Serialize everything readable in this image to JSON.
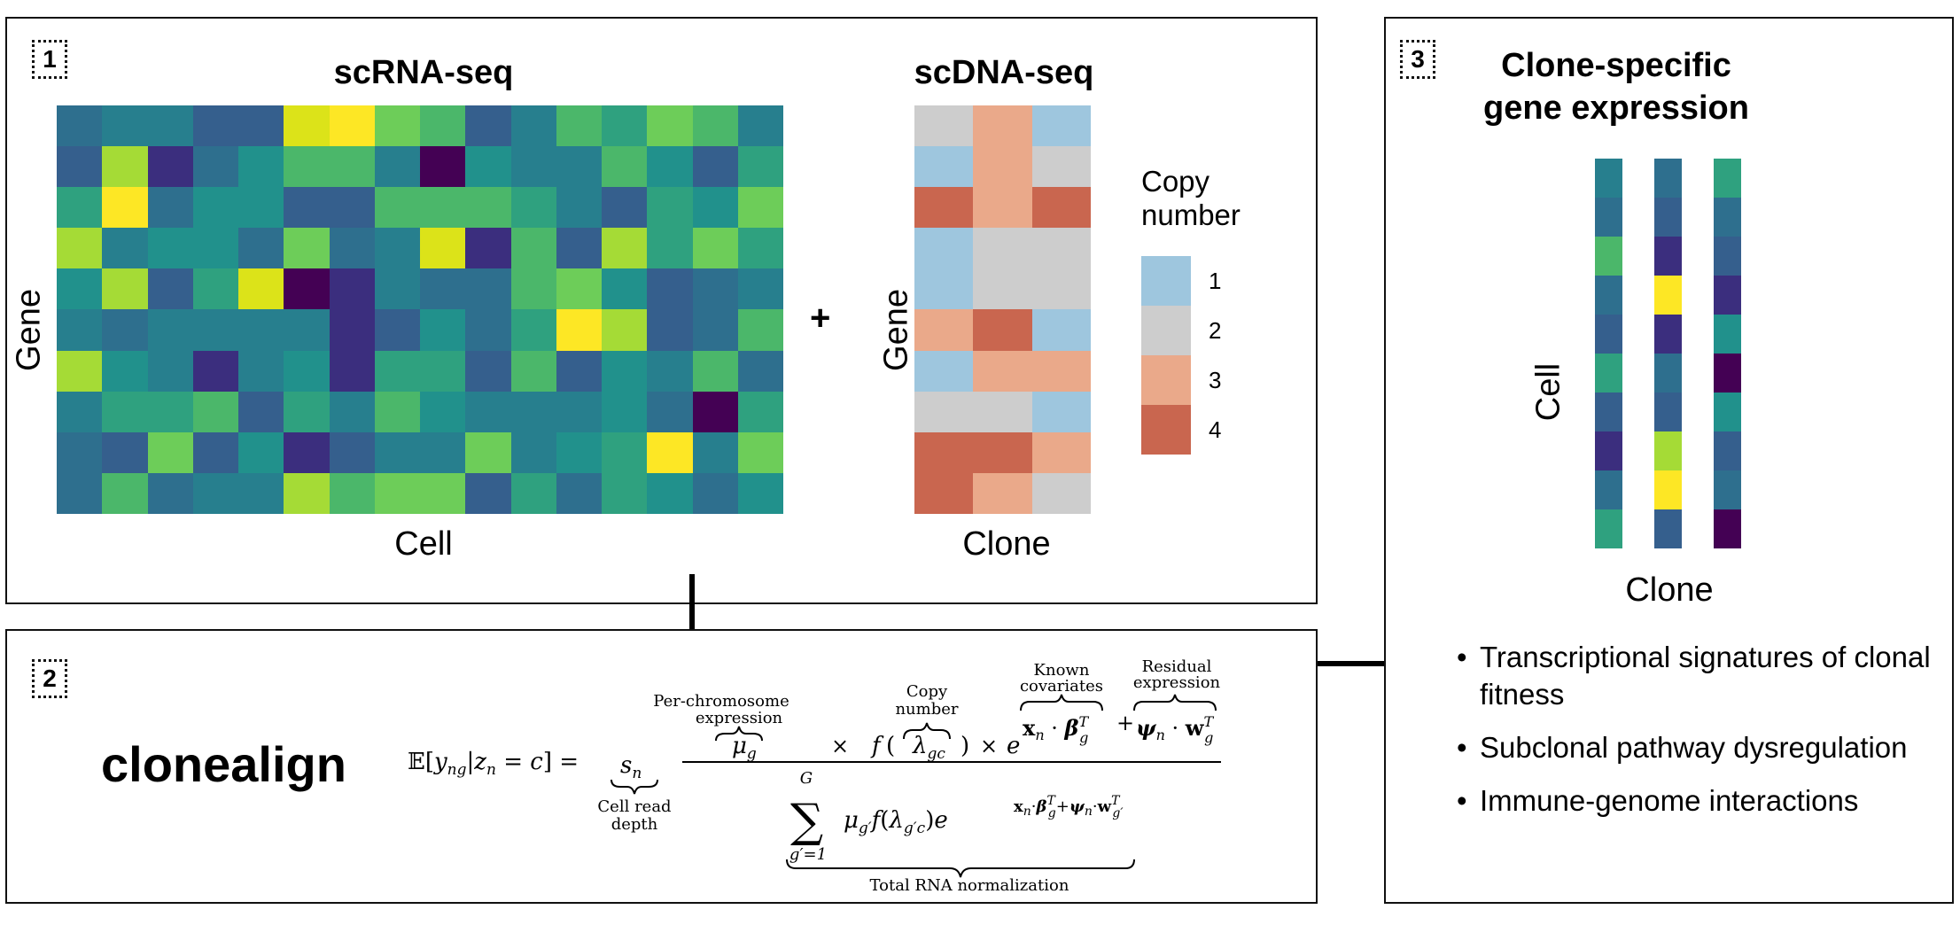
{
  "panel1": {
    "badge": "1",
    "scrna_title": "scRNA-seq",
    "scdna_title": "scDNA-seq",
    "rna_ylabel": "Gene",
    "rna_xlabel": "Cell",
    "plus": "+",
    "dna_ylabel": "Gene",
    "dna_xlabel": "Clone",
    "legend_title_line1": "Copy",
    "legend_title_line2": "number",
    "legend": [
      {
        "label": "1",
        "color": "#9ec6de"
      },
      {
        "label": "2",
        "color": "#cdcdcd"
      },
      {
        "label": "3",
        "color": "#eaa98a"
      },
      {
        "label": "4",
        "color": "#c9664f"
      }
    ]
  },
  "panel2": {
    "badge": "2",
    "name": "clonealign",
    "lhs": "𝔼[y",
    "annot_per_chrom_1": "Per-chromosome",
    "annot_per_chrom_2": "expression",
    "annot_copy_1": "Copy",
    "annot_copy_2": "number",
    "annot_known_1": "Known",
    "annot_known_2": "covariates",
    "annot_resid_1": "Residual",
    "annot_resid_2": "expression",
    "annot_depth_1": "Cell read",
    "annot_depth_2": "depth",
    "annot_total": "Total RNA normalization"
  },
  "panel3": {
    "badge": "3",
    "title_line1": "Clone-specific",
    "title_line2": "gene expression",
    "ylabel": "Cell",
    "xlabel": "Clone",
    "bullets": [
      "Transcriptional signatures of clonal fitness",
      "Subclonal pathway dysregulation",
      "Immune-genome interactions"
    ]
  },
  "colors": {
    "v1": "#440154",
    "v2": "#3b2e7e",
    "v3": "#355f8d",
    "v4": "#2e6f8e",
    "v5": "#277f8e",
    "v6": "#21918c",
    "v7": "#2fa17f",
    "v8": "#4bb76a",
    "v9": "#6dcd59",
    "v10": "#a5db36",
    "v11": "#dce319",
    "v12": "#fde725",
    "cn1": "#9ec6de",
    "cn2": "#cdcdcd",
    "cn3": "#eaa98a",
    "cn4": "#c9664f"
  },
  "rna_heatmap": {
    "rows": 10,
    "cols": 16,
    "cells": [
      [
        "v4",
        "v5",
        "v5",
        "v3",
        "v3",
        "v11",
        "v12",
        "v9",
        "v8",
        "v3",
        "v5",
        "v8",
        "v7",
        "v9",
        "v8",
        "v5"
      ],
      [
        "v3",
        "v10",
        "v2",
        "v4",
        "v6",
        "v8",
        "v8",
        "v5",
        "v1",
        "v6",
        "v5",
        "v5",
        "v8",
        "v6",
        "v3",
        "v7"
      ],
      [
        "v7",
        "v12",
        "v4",
        "v6",
        "v6",
        "v3",
        "v3",
        "v8",
        "v8",
        "v8",
        "v7",
        "v5",
        "v3",
        "v7",
        "v6",
        "v9"
      ],
      [
        "v10",
        "v5",
        "v6",
        "v6",
        "v4",
        "v9",
        "v4",
        "v5",
        "v11",
        "v2",
        "v8",
        "v3",
        "v10",
        "v7",
        "v9",
        "v7"
      ],
      [
        "v6",
        "v10",
        "v3",
        "v7",
        "v11",
        "v1",
        "v2",
        "v5",
        "v4",
        "v4",
        "v8",
        "v9",
        "v6",
        "v3",
        "v4",
        "v5"
      ],
      [
        "v5",
        "v4",
        "v5",
        "v5",
        "v5",
        "v5",
        "v2",
        "v3",
        "v6",
        "v4",
        "v7",
        "v12",
        "v10",
        "v3",
        "v4",
        "v8"
      ],
      [
        "v10",
        "v6",
        "v5",
        "v2",
        "v5",
        "v6",
        "v2",
        "v7",
        "v7",
        "v3",
        "v8",
        "v3",
        "v6",
        "v5",
        "v8",
        "v4"
      ],
      [
        "v5",
        "v7",
        "v7",
        "v8",
        "v3",
        "v7",
        "v5",
        "v8",
        "v6",
        "v5",
        "v5",
        "v5",
        "v6",
        "v4",
        "v1",
        "v7"
      ],
      [
        "v4",
        "v3",
        "v9",
        "v3",
        "v6",
        "v2",
        "v3",
        "v5",
        "v5",
        "v9",
        "v5",
        "v6",
        "v7",
        "v12",
        "v5",
        "v9"
      ],
      [
        "v4",
        "v8",
        "v4",
        "v5",
        "v5",
        "v10",
        "v8",
        "v9",
        "v9",
        "v3",
        "v7",
        "v4",
        "v7",
        "v6",
        "v4",
        "v6"
      ]
    ]
  },
  "dna_heatmap": {
    "rows": 10,
    "cols": 3,
    "cells": [
      [
        "cn2",
        "cn3",
        "cn1"
      ],
      [
        "cn1",
        "cn3",
        "cn2"
      ],
      [
        "cn4",
        "cn3",
        "cn4"
      ],
      [
        "cn1",
        "cn2",
        "cn2"
      ],
      [
        "cn1",
        "cn2",
        "cn2"
      ],
      [
        "cn3",
        "cn4",
        "cn1"
      ],
      [
        "cn1",
        "cn3",
        "cn3"
      ],
      [
        "cn2",
        "cn2",
        "cn1"
      ],
      [
        "cn4",
        "cn4",
        "cn3"
      ],
      [
        "cn4",
        "cn3",
        "cn2"
      ]
    ]
  },
  "clone_columns": [
    [
      "v5",
      "v4",
      "v8",
      "v4",
      "v3",
      "v7",
      "v3",
      "v2",
      "v4",
      "v7"
    ],
    [
      "v4",
      "v3",
      "v2",
      "v12",
      "v2",
      "v4",
      "v3",
      "v10",
      "v12",
      "v3"
    ],
    [
      "v7",
      "v4",
      "v3",
      "v2",
      "v6",
      "v1",
      "v6",
      "v3",
      "v4",
      "v1"
    ]
  ]
}
